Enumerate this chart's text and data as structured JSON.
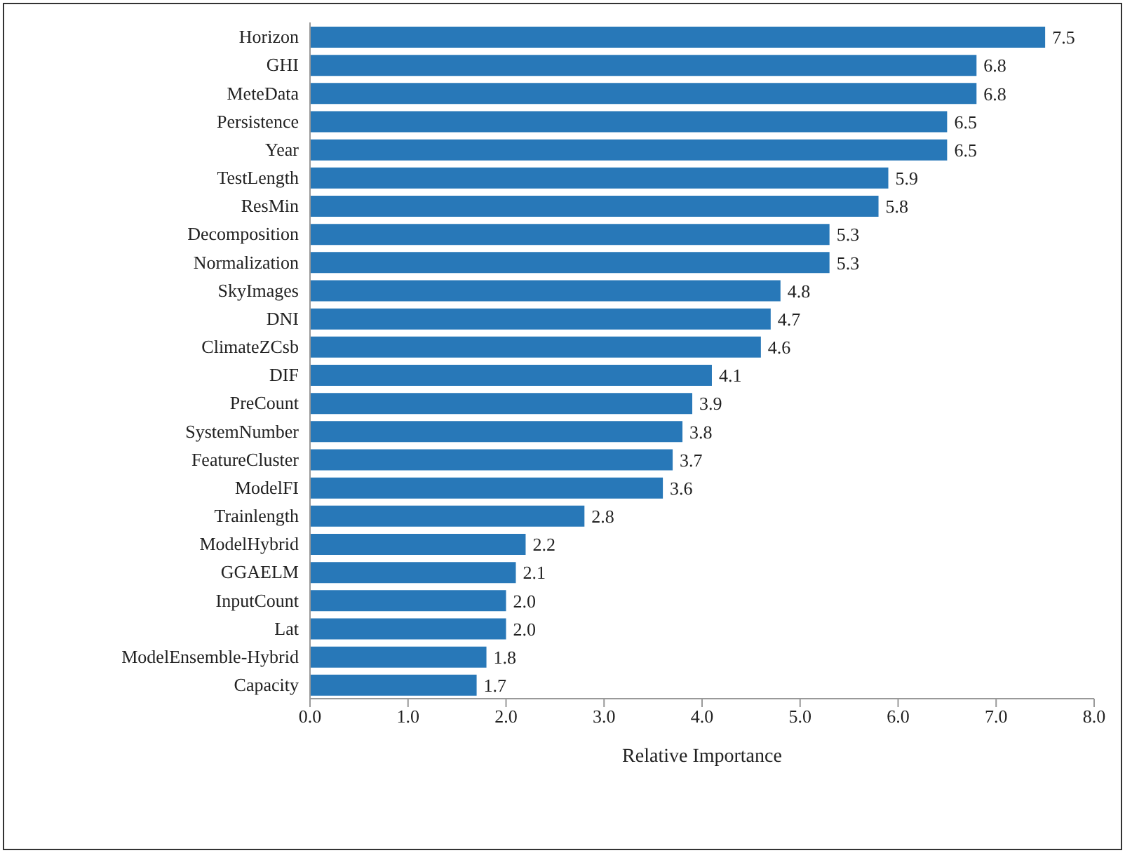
{
  "chart_data": {
    "type": "bar",
    "orientation": "horizontal",
    "xlabel": "Relative Importance",
    "categories": [
      "Horizon",
      "GHI",
      "MeteData",
      "Persistence",
      "Year",
      "TestLength",
      "ResMin",
      "Decomposition",
      "Normalization",
      "SkyImages",
      "DNI",
      "ClimateZCsb",
      "DIF",
      "PreCount",
      "SystemNumber",
      "FeatureCluster",
      "ModelFI",
      "Trainlength",
      "ModelHybrid",
      "GGAELM",
      "InputCount",
      "Lat",
      "ModelEnsemble-Hybrid",
      "Capacity"
    ],
    "values": [
      7.5,
      6.8,
      6.8,
      6.5,
      6.5,
      5.9,
      5.8,
      5.3,
      5.3,
      4.8,
      4.7,
      4.6,
      4.1,
      3.9,
      3.8,
      3.7,
      3.6,
      2.8,
      2.2,
      2.1,
      2.0,
      2.0,
      1.8,
      1.7
    ],
    "value_labels": [
      "7.5",
      "6.8",
      "6.8",
      "6.5",
      "6.5",
      "5.9",
      "5.8",
      "5.3",
      "5.3",
      "4.8",
      "4.7",
      "4.6",
      "4.1",
      "3.9",
      "3.8",
      "3.7",
      "3.6",
      "2.8",
      "2.2",
      "2.1",
      "2.0",
      "2.0",
      "1.8",
      "1.7"
    ],
    "color": "#2878b8",
    "xlim": [
      0,
      8
    ],
    "xticks": [
      {
        "value": 0,
        "label": "0.0"
      },
      {
        "value": 1,
        "label": "1.0"
      },
      {
        "value": 2,
        "label": "2.0"
      },
      {
        "value": 3,
        "label": "3.0"
      },
      {
        "value": 4,
        "label": "4.0"
      },
      {
        "value": 5,
        "label": "5.0"
      },
      {
        "value": 6,
        "label": "6.0"
      },
      {
        "value": 7,
        "label": "7.0"
      },
      {
        "value": 8,
        "label": "8.0"
      }
    ],
    "grid": false,
    "legend": false
  }
}
